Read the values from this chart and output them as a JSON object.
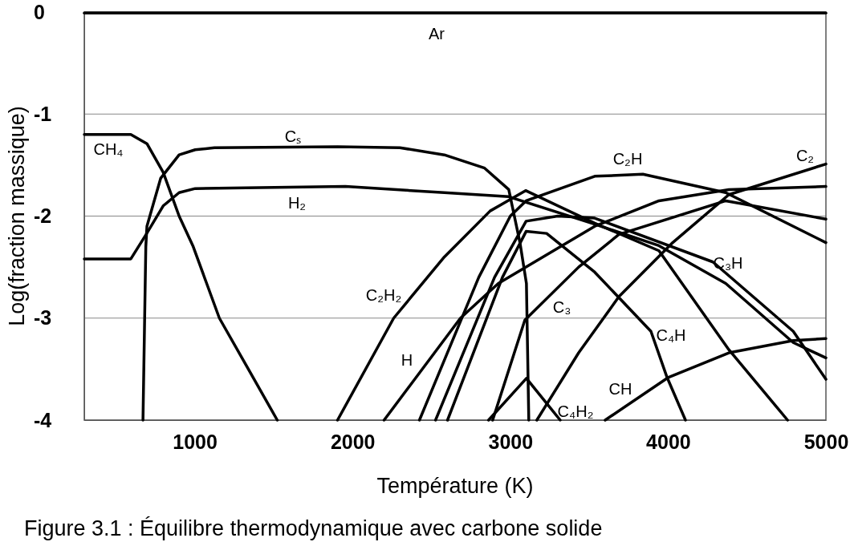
{
  "chart_data": {
    "type": "line",
    "xlabel": "Température (K)",
    "ylabel": "Log(fraction massique)",
    "xlim": [
      300,
      5000
    ],
    "xticks": [
      1000,
      2000,
      3000,
      4000,
      5000
    ],
    "ylim": [
      -4,
      0
    ],
    "yticks": [
      0,
      -1,
      -2,
      -3,
      -4
    ],
    "grid": "y",
    "marker": "none",
    "line_style": "solid",
    "series": [
      {
        "name": "Ar",
        "color": "#000000",
        "x": [
          300,
          5000
        ],
        "values": [
          -0.01,
          -0.01
        ]
      },
      {
        "name": "CH₄",
        "color": "#000000",
        "x": [
          300,
          595,
          697,
          800,
          901,
          988,
          1156,
          1329,
          1523
        ],
        "values": [
          -1.2,
          -1.2,
          -1.29,
          -1.57,
          -2.0,
          -2.29,
          -3.0,
          -3.47,
          -4.0
        ]
      },
      {
        "name": "Cₛ",
        "color": "#000000",
        "x": [
          672,
          690,
          697,
          784,
          901,
          1003,
          1125,
          1905,
          2300,
          2582,
          2837,
          2990,
          3061,
          3102,
          3117
        ],
        "values": [
          -4,
          -2.3,
          -2.1,
          -1.63,
          -1.4,
          -1.35,
          -1.33,
          -1.32,
          -1.33,
          -1.4,
          -1.53,
          -1.74,
          -2.26,
          -2.66,
          -4
        ]
      },
      {
        "name": "H₂",
        "color": "#000000",
        "x": [
          300,
          595,
          692,
          800,
          901,
          1003,
          1955,
          2582,
          2990,
          3535,
          3942,
          4365,
          4793,
          5000
        ],
        "values": [
          -2.42,
          -2.42,
          -2.18,
          -1.9,
          -1.77,
          -1.73,
          -1.71,
          -1.77,
          -1.81,
          -2.08,
          -2.29,
          -2.66,
          -3.24,
          -3.39
        ]
      },
      {
        "name": "C₂H₂",
        "color": "#000000",
        "x": [
          1905,
          2261,
          2582,
          2872,
          3097,
          3535,
          3942,
          4385,
          4757
        ],
        "values": [
          -4,
          -3.0,
          -2.4,
          -1.95,
          -1.75,
          -2.07,
          -2.34,
          -3.31,
          -4
        ]
      },
      {
        "name": "H",
        "color": "#000000",
        "x": [
          2200,
          2684,
          2924,
          3535,
          3942,
          4385,
          5000
        ],
        "values": [
          -4,
          -3.0,
          -2.66,
          -2.1,
          -1.85,
          -1.74,
          -1.71
        ]
      },
      {
        "name": "C₂H",
        "color": "#000000",
        "x": [
          2424,
          2800,
          3000,
          3100,
          3535,
          3840,
          4365,
          5000
        ],
        "values": [
          -4,
          -2.6,
          -2.0,
          -1.85,
          -1.61,
          -1.59,
          -1.77,
          -2.26
        ]
      },
      {
        "name": "C₃H",
        "color": "#000000",
        "x": [
          2526,
          2900,
          3100,
          3300,
          3535,
          4284,
          4793,
          5000
        ],
        "values": [
          -4,
          -2.6,
          -2.05,
          -2.0,
          -2.02,
          -2.45,
          -3.13,
          -3.6
        ]
      },
      {
        "name": "C₄H",
        "color": "#000000",
        "x": [
          2602,
          2950,
          3100,
          3230,
          3535,
          3891,
          3993,
          4110
        ],
        "values": [
          -4,
          -2.6,
          -2.15,
          -2.17,
          -2.55,
          -3.13,
          -3.58,
          -4
        ]
      },
      {
        "name": "C₃",
        "color": "#000000",
        "x": [
          2888,
          3092,
          3433,
          3688,
          4365,
          5000
        ],
        "values": [
          -4,
          -3.02,
          -2.5,
          -2.18,
          -1.85,
          -2.03
        ]
      },
      {
        "name": "C₄H₂",
        "color": "#000000",
        "x": [
          2862,
          3102,
          3316
        ],
        "values": [
          -4,
          -3.59,
          -4
        ]
      },
      {
        "name": "C₂",
        "color": "#000000",
        "x": [
          3168,
          3433,
          3688,
          4029,
          4385,
          5000
        ],
        "values": [
          -4,
          -3.34,
          -2.79,
          -2.26,
          -1.79,
          -1.49
        ]
      },
      {
        "name": "CH",
        "color": "#000000",
        "x": [
          3601,
          4003,
          4385,
          4793,
          5000
        ],
        "values": [
          -4,
          -3.58,
          -3.34,
          -3.22,
          -3.2
        ]
      }
    ],
    "annotations": [
      "Figure 3.1 : Équilibre thermodynamique avec carbone solide"
    ]
  }
}
